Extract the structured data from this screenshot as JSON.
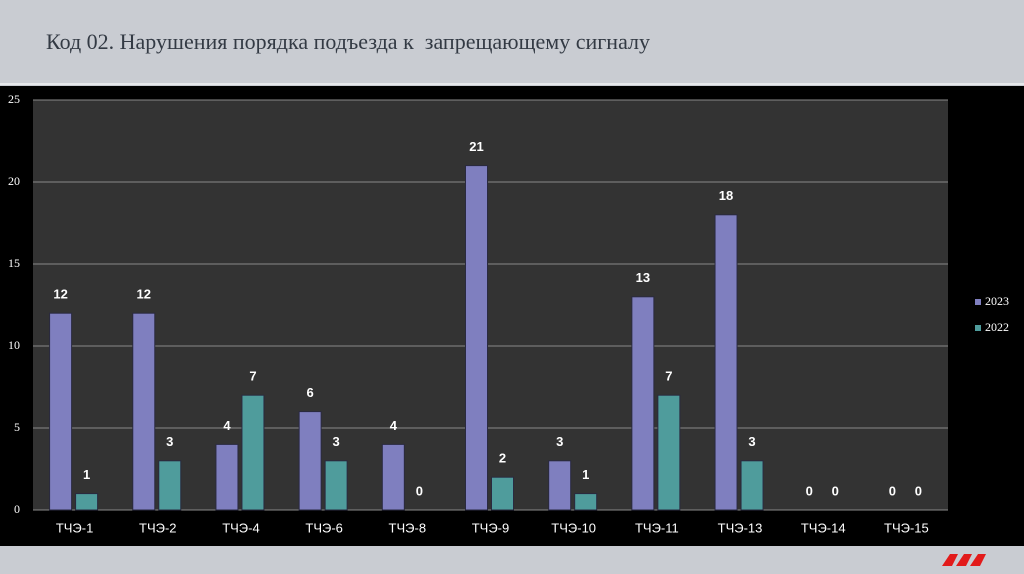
{
  "chart_data": {
    "type": "bar",
    "title": "Код 02. Нарушения порядка подъезда к  запрещающему сигналу",
    "categories": [
      "ТЧЭ-1",
      "ТЧЭ-2",
      "ТЧЭ-4",
      "ТЧЭ-6",
      "ТЧЭ-8",
      "ТЧЭ-9",
      "ТЧЭ-10",
      "ТЧЭ-11",
      "ТЧЭ-13",
      "ТЧЭ-14",
      "ТЧЭ-15"
    ],
    "series": [
      {
        "name": "2023",
        "color": "#7f7fbf",
        "values": [
          12,
          12,
          4,
          6,
          4,
          21,
          3,
          13,
          18,
          0,
          0
        ]
      },
      {
        "name": "2022",
        "color": "#4f9c9c",
        "values": [
          1,
          3,
          7,
          3,
          0,
          2,
          1,
          7,
          3,
          0,
          0
        ]
      }
    ],
    "ylim": [
      0,
      25
    ],
    "yticks": [
      0,
      5,
      10,
      15,
      20,
      25
    ],
    "grid": true,
    "legend": "right"
  }
}
